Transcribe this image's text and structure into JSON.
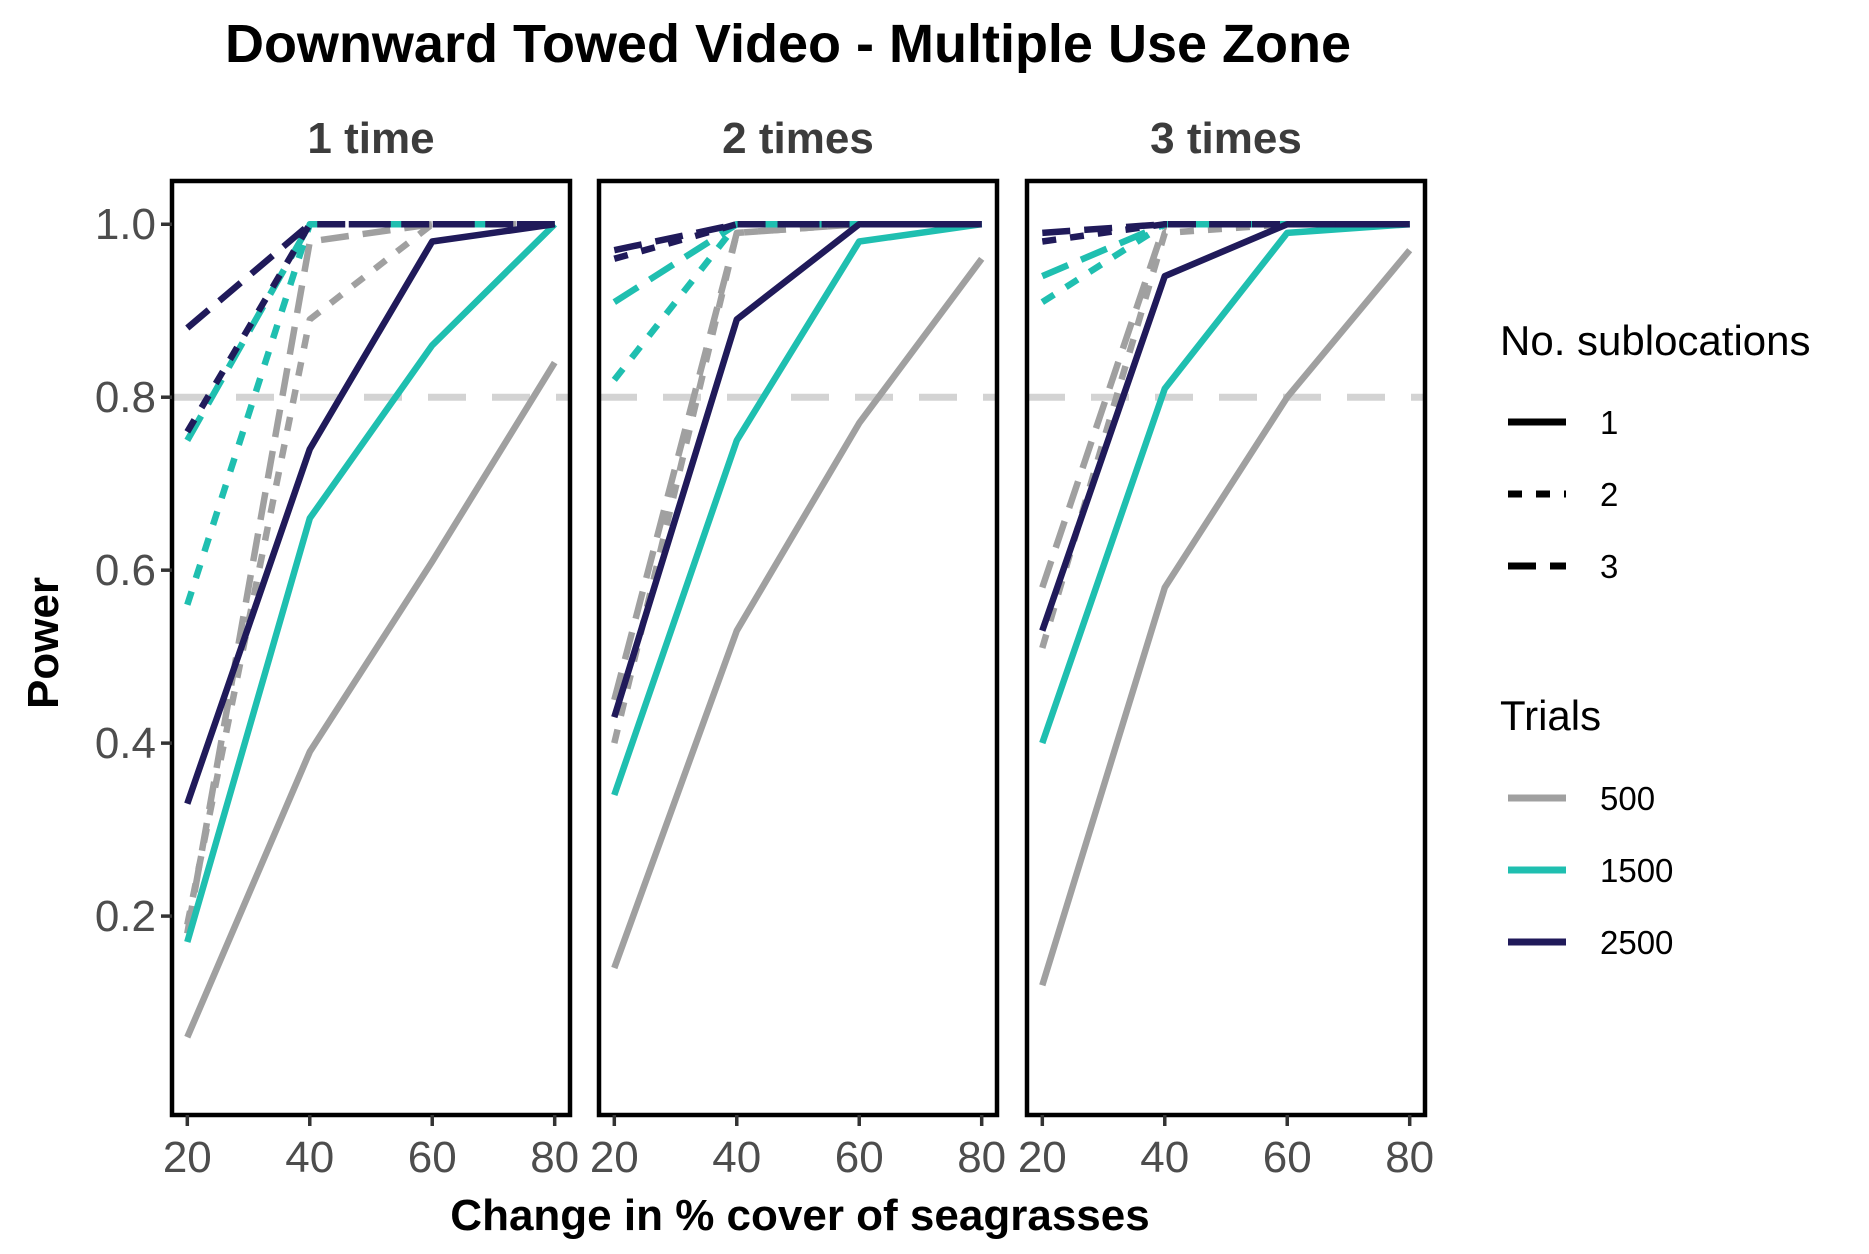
{
  "chart_data": {
    "type": "line",
    "title": "Downward Towed Video - Multiple Use Zone",
    "xlabel": "Change in % cover of seagrasses",
    "ylabel": "Power",
    "x": [
      20,
      40,
      60,
      80
    ],
    "x_ticks": [
      "20",
      "40",
      "60",
      "80"
    ],
    "y_ticks": [
      "0.2",
      "0.4",
      "0.6",
      "0.8",
      "1.0"
    ],
    "xlim": [
      17.5,
      82.5
    ],
    "ylim": [
      -0.03,
      1.05
    ],
    "reference_line": {
      "y": 0.8,
      "style": "dashed",
      "color": "#d3d3d3"
    },
    "grid": false,
    "facets": [
      "1 time",
      "2 times",
      "3 times"
    ],
    "legend": {
      "position": "right",
      "linetype_title": "No. sublocations",
      "linetype_entries": [
        {
          "label": "1",
          "dash": "solid"
        },
        {
          "label": "2",
          "dash": "dashed"
        },
        {
          "label": "3",
          "dash": "longdash"
        }
      ],
      "color_title": "Trials",
      "color_entries": [
        {
          "label": "500",
          "color": "#a0a0a0"
        },
        {
          "label": "1500",
          "color": "#1fbfb0"
        },
        {
          "label": "2500",
          "color": "#201a5a"
        }
      ]
    },
    "panels": [
      {
        "name": "1 time",
        "series": [
          {
            "trials": "500",
            "sublocations": "1",
            "values": [
              0.06,
              0.39,
              0.61,
              0.84
            ]
          },
          {
            "trials": "500",
            "sublocations": "2",
            "values": [
              0.19,
              0.89,
              1.0,
              1.0
            ]
          },
          {
            "trials": "500",
            "sublocations": "3",
            "values": [
              0.18,
              0.98,
              1.0,
              1.0
            ]
          },
          {
            "trials": "1500",
            "sublocations": "1",
            "values": [
              0.17,
              0.66,
              0.86,
              1.0
            ]
          },
          {
            "trials": "1500",
            "sublocations": "2",
            "values": [
              0.56,
              1.0,
              1.0,
              1.0
            ]
          },
          {
            "trials": "1500",
            "sublocations": "3",
            "values": [
              0.75,
              1.0,
              1.0,
              1.0
            ]
          },
          {
            "trials": "2500",
            "sublocations": "1",
            "values": [
              0.33,
              0.74,
              0.98,
              1.0
            ]
          },
          {
            "trials": "2500",
            "sublocations": "2",
            "values": [
              0.76,
              1.0,
              1.0,
              1.0
            ]
          },
          {
            "trials": "2500",
            "sublocations": "3",
            "values": [
              0.88,
              1.0,
              1.0,
              1.0
            ]
          }
        ]
      },
      {
        "name": "2 times",
        "series": [
          {
            "trials": "500",
            "sublocations": "1",
            "values": [
              0.14,
              0.53,
              0.77,
              0.96
            ]
          },
          {
            "trials": "500",
            "sublocations": "2",
            "values": [
              0.4,
              0.99,
              1.0,
              1.0
            ]
          },
          {
            "trials": "500",
            "sublocations": "3",
            "values": [
              0.45,
              0.99,
              1.0,
              1.0
            ]
          },
          {
            "trials": "1500",
            "sublocations": "1",
            "values": [
              0.34,
              0.75,
              0.98,
              1.0
            ]
          },
          {
            "trials": "1500",
            "sublocations": "2",
            "values": [
              0.82,
              1.0,
              1.0,
              1.0
            ]
          },
          {
            "trials": "1500",
            "sublocations": "3",
            "values": [
              0.91,
              1.0,
              1.0,
              1.0
            ]
          },
          {
            "trials": "2500",
            "sublocations": "1",
            "values": [
              0.43,
              0.89,
              1.0,
              1.0
            ]
          },
          {
            "trials": "2500",
            "sublocations": "2",
            "values": [
              0.96,
              1.0,
              1.0,
              1.0
            ]
          },
          {
            "trials": "2500",
            "sublocations": "3",
            "values": [
              0.97,
              1.0,
              1.0,
              1.0
            ]
          }
        ]
      },
      {
        "name": "3 times",
        "series": [
          {
            "trials": "500",
            "sublocations": "1",
            "values": [
              0.12,
              0.58,
              0.8,
              0.97
            ]
          },
          {
            "trials": "500",
            "sublocations": "2",
            "values": [
              0.51,
              0.99,
              1.0,
              1.0
            ]
          },
          {
            "trials": "500",
            "sublocations": "3",
            "values": [
              0.58,
              1.0,
              1.0,
              1.0
            ]
          },
          {
            "trials": "1500",
            "sublocations": "1",
            "values": [
              0.4,
              0.81,
              0.99,
              1.0
            ]
          },
          {
            "trials": "1500",
            "sublocations": "2",
            "values": [
              0.91,
              1.0,
              1.0,
              1.0
            ]
          },
          {
            "trials": "1500",
            "sublocations": "3",
            "values": [
              0.94,
              1.0,
              1.0,
              1.0
            ]
          },
          {
            "trials": "2500",
            "sublocations": "1",
            "values": [
              0.53,
              0.94,
              1.0,
              1.0
            ]
          },
          {
            "trials": "2500",
            "sublocations": "2",
            "values": [
              0.98,
              1.0,
              1.0,
              1.0
            ]
          },
          {
            "trials": "2500",
            "sublocations": "3",
            "values": [
              0.99,
              1.0,
              1.0,
              1.0
            ]
          }
        ]
      }
    ]
  }
}
